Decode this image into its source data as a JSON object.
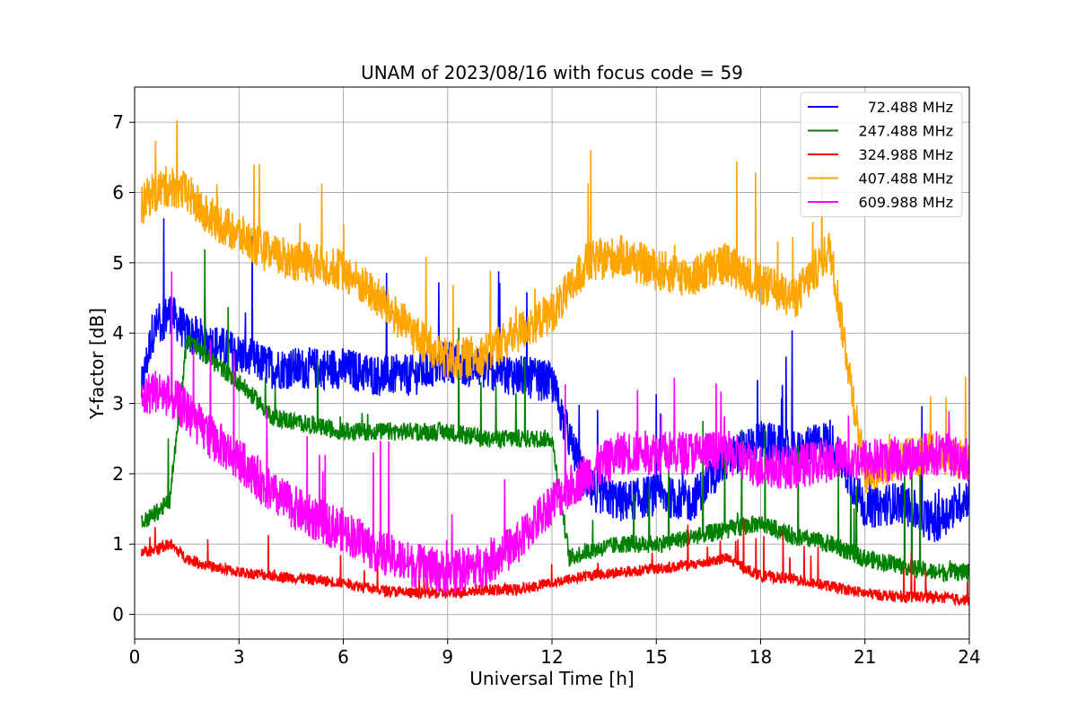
{
  "chart_data": {
    "type": "line",
    "title": "UNAM of 2023/08/16 with focus code = 59",
    "xlabel": "Universal Time [h]",
    "ylabel": "Y-factor [dB]",
    "xlim": [
      0,
      24
    ],
    "ylim": [
      -0.35,
      7.5
    ],
    "xticks": [
      0,
      3,
      6,
      9,
      12,
      15,
      18,
      21,
      24
    ],
    "yticks": [
      0,
      1,
      2,
      3,
      4,
      5,
      6,
      7
    ],
    "grid": true,
    "legend_position": "top-right",
    "x": [
      0.2,
      0.5,
      1.0,
      1.5,
      2.0,
      3.0,
      4.0,
      5.0,
      6.0,
      7.0,
      8.0,
      9.0,
      10.0,
      11.0,
      12.0,
      12.5,
      13.0,
      14.0,
      15.0,
      16.0,
      17.0,
      18.0,
      19.0,
      20.0,
      21.0,
      22.0,
      23.0,
      24.0
    ],
    "series": [
      {
        "name": "72.488 MHz",
        "color": "#0000ff",
        "noise": 0.3,
        "values": [
          3.2,
          4.0,
          4.3,
          4.0,
          3.9,
          3.7,
          3.5,
          3.5,
          3.5,
          3.4,
          3.4,
          3.6,
          3.5,
          3.4,
          3.3,
          2.5,
          1.8,
          1.6,
          1.7,
          1.6,
          2.2,
          2.5,
          2.3,
          2.5,
          1.5,
          1.6,
          1.3,
          1.7
        ]
      },
      {
        "name": "247.488 MHz",
        "color": "#008000",
        "noise": 0.13,
        "values": [
          1.3,
          1.4,
          1.6,
          3.9,
          3.7,
          3.3,
          2.8,
          2.7,
          2.6,
          2.6,
          2.6,
          2.6,
          2.5,
          2.5,
          2.5,
          0.8,
          0.9,
          1.0,
          1.0,
          1.1,
          1.2,
          1.3,
          1.1,
          1.0,
          0.8,
          0.7,
          0.6,
          0.6
        ]
      },
      {
        "name": "324.988 MHz",
        "color": "#ff0000",
        "noise": 0.08,
        "values": [
          0.9,
          0.9,
          1.0,
          0.8,
          0.7,
          0.6,
          0.55,
          0.5,
          0.45,
          0.35,
          0.3,
          0.3,
          0.35,
          0.35,
          0.45,
          0.5,
          0.55,
          0.6,
          0.65,
          0.7,
          0.8,
          0.55,
          0.5,
          0.4,
          0.3,
          0.25,
          0.25,
          0.2
        ]
      },
      {
        "name": "407.488 MHz",
        "color": "#ffa500",
        "noise": 0.3,
        "values": [
          5.8,
          6.0,
          6.1,
          6.0,
          5.7,
          5.4,
          5.1,
          5.0,
          4.9,
          4.5,
          4.0,
          3.6,
          3.7,
          4.0,
          4.3,
          4.6,
          5.0,
          5.1,
          4.9,
          4.8,
          5.0,
          4.7,
          4.5,
          5.2,
          2.0,
          2.2,
          2.3,
          2.2
        ]
      },
      {
        "name": "609.988 MHz",
        "color": "#ff00ff",
        "noise": 0.32,
        "values": [
          3.0,
          3.2,
          3.1,
          2.9,
          2.6,
          2.2,
          1.7,
          1.4,
          1.2,
          0.9,
          0.7,
          0.6,
          0.7,
          1.0,
          1.6,
          1.8,
          2.0,
          2.3,
          2.3,
          2.3,
          2.3,
          2.1,
          2.1,
          2.2,
          2.2,
          2.2,
          2.3,
          2.2
        ]
      }
    ]
  }
}
